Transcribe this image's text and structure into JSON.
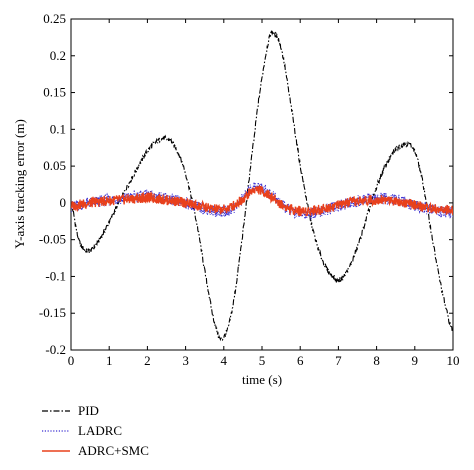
{
  "chart_data": {
    "type": "line",
    "title": "",
    "xlabel": "time (s)",
    "ylabel": "Y-axis tracking error (m)",
    "xlim": [
      0,
      10
    ],
    "ylim": [
      -0.2,
      0.25
    ],
    "xticks": [
      0,
      1,
      2,
      3,
      4,
      5,
      6,
      7,
      8,
      9,
      10
    ],
    "xtick_labels": [
      "0",
      "1",
      "2",
      "3",
      "4",
      "5",
      "6",
      "7",
      "8",
      "9",
      "10"
    ],
    "yticks": [
      -0.2,
      -0.15,
      -0.1,
      -0.05,
      0,
      0.05,
      0.1,
      0.15,
      0.2,
      0.25
    ],
    "ytick_labels": [
      "-0.2",
      "-0.15",
      "-0.1",
      "-0.05",
      "0",
      "0.05",
      "0.1",
      "0.15",
      "0.2",
      "0.25"
    ],
    "grid": false,
    "legend_position": "bottom-left, below plot",
    "series": [
      {
        "name": "PID",
        "color": "#000000",
        "style": "dash-dot",
        "x": [
          0,
          0.2,
          0.4,
          0.6,
          0.8,
          1.0,
          1.3,
          1.6,
          2.0,
          2.3,
          2.5,
          2.7,
          3.0,
          3.3,
          3.6,
          3.8,
          3.95,
          4.2,
          4.5,
          4.8,
          5.0,
          5.2,
          5.3,
          5.5,
          5.8,
          6.0,
          6.3,
          6.6,
          6.9,
          7.0,
          7.2,
          7.5,
          7.8,
          8.1,
          8.4,
          8.6,
          8.8,
          9.0,
          9.2,
          9.4,
          9.6,
          9.8,
          10.0
        ],
        "y": [
          0.0,
          -0.05,
          -0.065,
          -0.06,
          -0.045,
          -0.025,
          0.005,
          0.035,
          0.07,
          0.085,
          0.087,
          0.078,
          0.04,
          -0.03,
          -0.12,
          -0.17,
          -0.185,
          -0.15,
          -0.04,
          0.09,
          0.17,
          0.225,
          0.23,
          0.21,
          0.12,
          0.05,
          -0.03,
          -0.08,
          -0.102,
          -0.105,
          -0.095,
          -0.06,
          -0.01,
          0.035,
          0.065,
          0.077,
          0.08,
          0.07,
          0.03,
          -0.03,
          -0.09,
          -0.14,
          -0.175
        ]
      },
      {
        "name": "LADRC",
        "color": "#3a2fd1",
        "style": "dotted",
        "x": [
          0,
          0.5,
          1.0,
          1.5,
          2.0,
          2.5,
          3.0,
          3.5,
          4.0,
          4.3,
          4.6,
          4.8,
          5.0,
          5.3,
          5.6,
          6.0,
          6.5,
          7.0,
          7.5,
          8.0,
          8.5,
          9.0,
          9.5,
          10.0
        ],
        "y": [
          -0.005,
          0.0,
          0.004,
          0.007,
          0.01,
          0.006,
          0.0,
          -0.008,
          -0.012,
          -0.005,
          0.012,
          0.022,
          0.02,
          0.008,
          -0.006,
          -0.014,
          -0.012,
          -0.004,
          0.002,
          0.006,
          0.004,
          -0.004,
          -0.01,
          -0.014
        ]
      },
      {
        "name": "ADRC+SMC",
        "color": "#e8401c",
        "style": "solid",
        "x": [
          0,
          0.5,
          1.0,
          1.5,
          2.0,
          2.5,
          3.0,
          3.5,
          4.0,
          4.3,
          4.6,
          4.8,
          5.0,
          5.3,
          5.6,
          6.0,
          6.5,
          7.0,
          7.5,
          8.0,
          8.5,
          9.0,
          9.5,
          10.0
        ],
        "y": [
          -0.004,
          0.0,
          0.003,
          0.005,
          0.007,
          0.004,
          0.0,
          -0.006,
          -0.009,
          -0.002,
          0.01,
          0.018,
          0.016,
          0.006,
          -0.005,
          -0.011,
          -0.009,
          -0.003,
          0.002,
          0.004,
          0.003,
          -0.003,
          -0.008,
          -0.011
        ]
      }
    ]
  }
}
